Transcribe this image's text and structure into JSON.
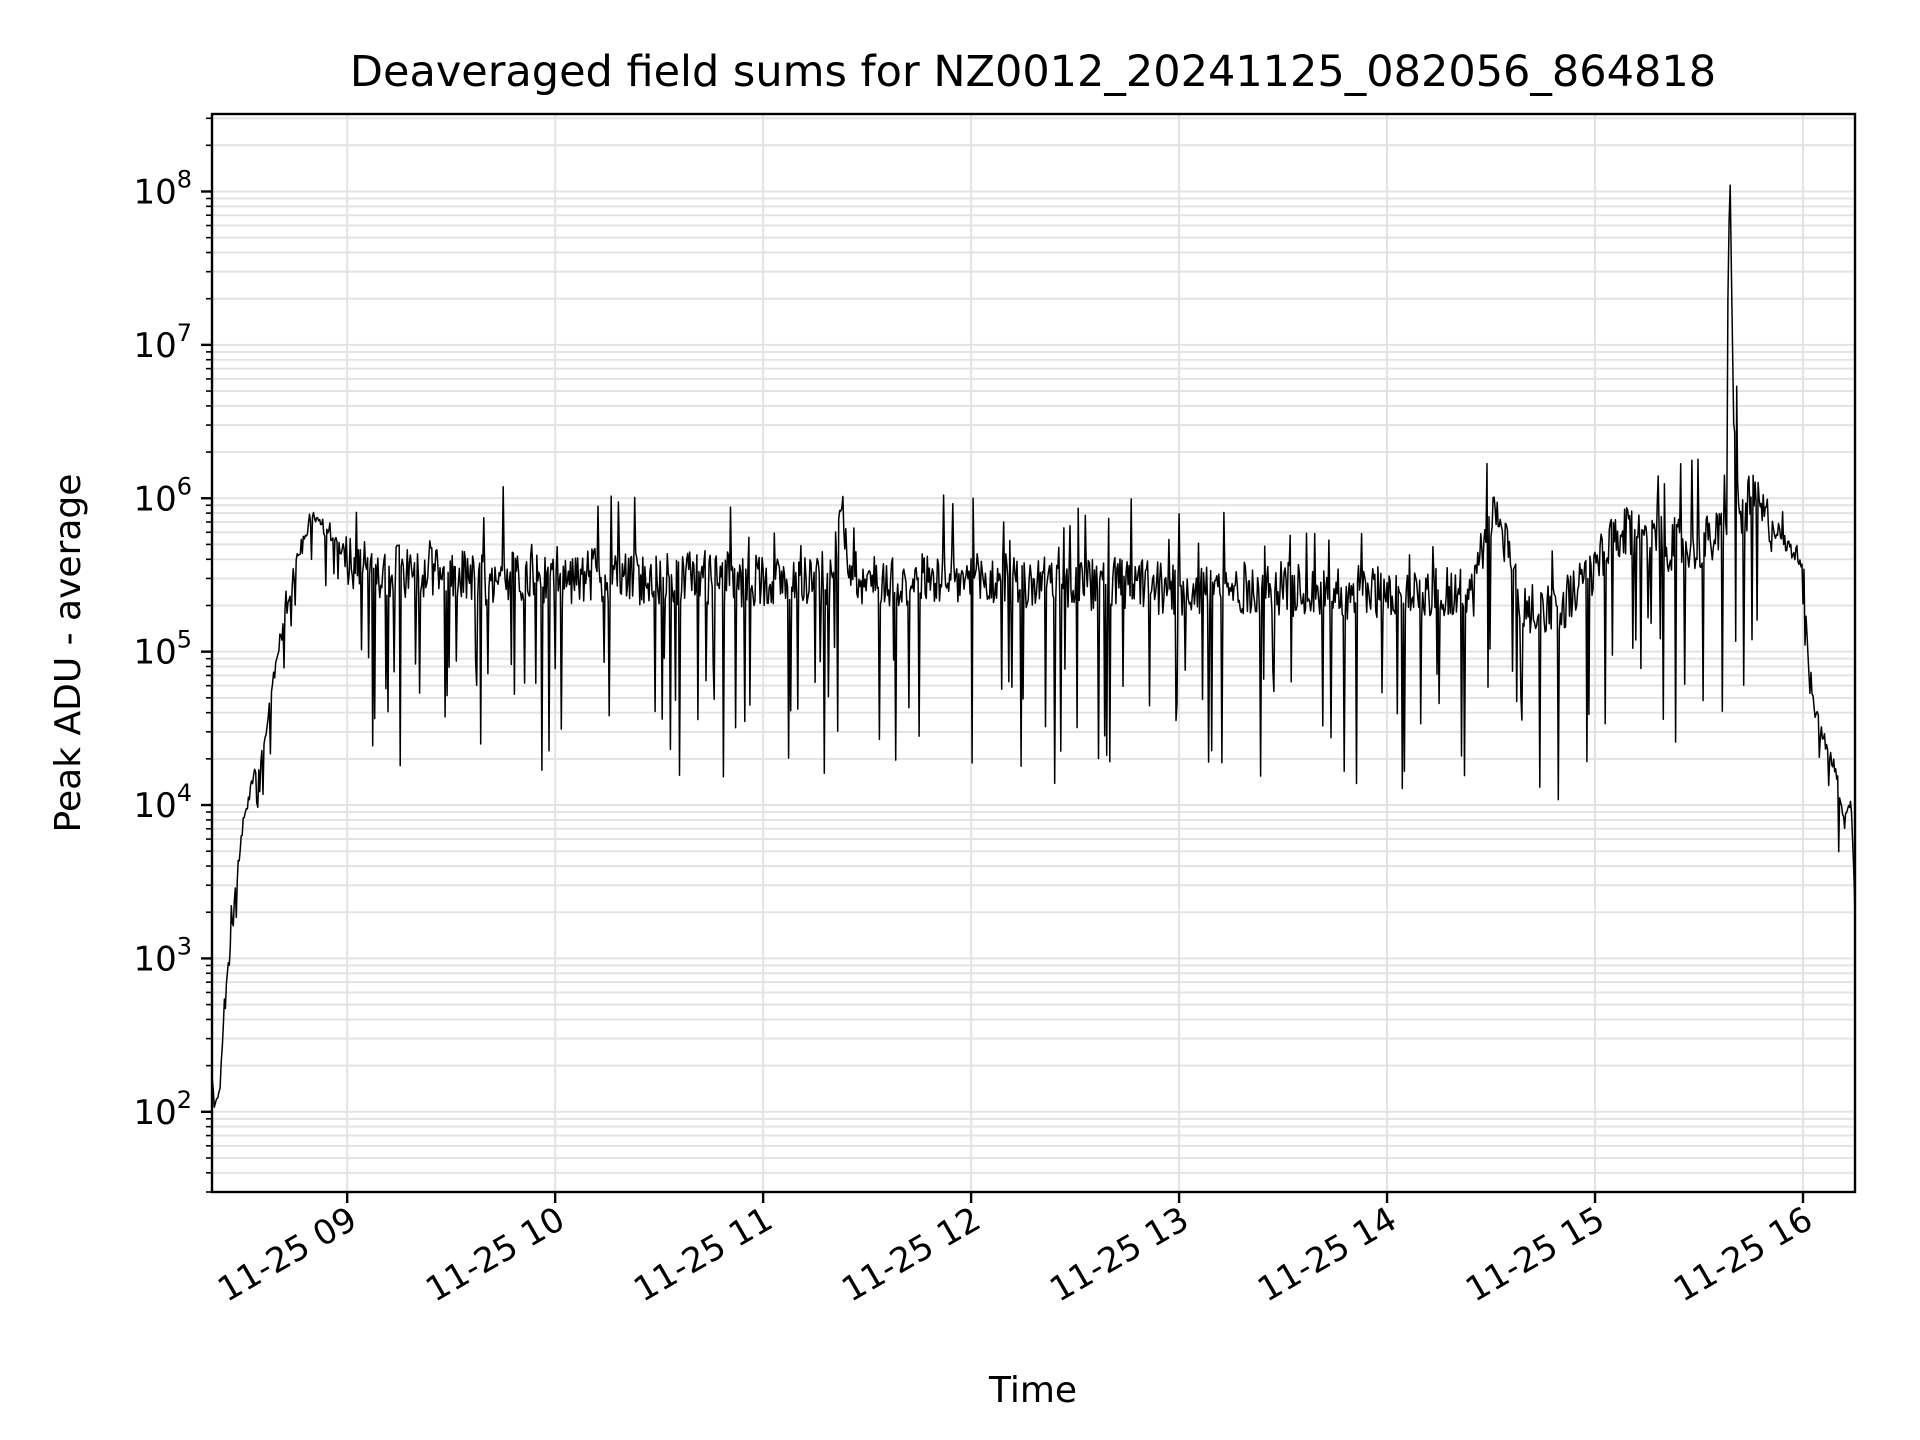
{
  "chart_data": {
    "type": "line",
    "title": "Deaveraged field sums for NZ0012_20241125_082056_864818",
    "xlabel": "Time",
    "ylabel": "Peak ADU - average",
    "yscale": "log",
    "ylim": [
      30,
      320000000
    ],
    "xlim": [
      "2024-11-25 08:21",
      "2024-11-25 16:15"
    ],
    "grid": true,
    "x_ticks": [
      "11-25 09",
      "11-25 10",
      "11-25 11",
      "11-25 12",
      "11-25 13",
      "11-25 14",
      "11-25 15",
      "11-25 16"
    ],
    "y_ticks": [
      {
        "base": "10",
        "exp": "2"
      },
      {
        "base": "10",
        "exp": "3"
      },
      {
        "base": "10",
        "exp": "4"
      },
      {
        "base": "10",
        "exp": "5"
      },
      {
        "base": "10",
        "exp": "6"
      },
      {
        "base": "10",
        "exp": "7"
      },
      {
        "base": "10",
        "exp": "8"
      }
    ],
    "series": [
      {
        "color": "#000000",
        "x": [
          "2024-11-25 08:21",
          "2024-11-25 08:22",
          "2024-11-25 08:23",
          "2024-11-25 08:24",
          "2024-11-25 08:26",
          "2024-11-25 08:28",
          "2024-11-25 08:30",
          "2024-11-25 08:33",
          "2024-11-25 08:36",
          "2024-11-25 08:40",
          "2024-11-25 08:45",
          "2024-11-25 08:50",
          "2024-11-25 08:55",
          "2024-11-25 09:00",
          "2024-11-25 09:05",
          "2024-11-25 09:10",
          "2024-11-25 09:15",
          "2024-11-25 09:20",
          "2024-11-25 09:25",
          "2024-11-25 09:30",
          "2024-11-25 09:35",
          "2024-11-25 09:40",
          "2024-11-25 09:45",
          "2024-11-25 09:50",
          "2024-11-25 09:55",
          "2024-11-25 10:00",
          "2024-11-25 10:05",
          "2024-11-25 10:10",
          "2024-11-25 10:15",
          "2024-11-25 10:20",
          "2024-11-25 10:25",
          "2024-11-25 10:30",
          "2024-11-25 10:35",
          "2024-11-25 10:40",
          "2024-11-25 10:45",
          "2024-11-25 10:50",
          "2024-11-25 10:55",
          "2024-11-25 11:00",
          "2024-11-25 11:05",
          "2024-11-25 11:10",
          "2024-11-25 11:15",
          "2024-11-25 11:20",
          "2024-11-25 11:23",
          "2024-11-25 11:25",
          "2024-11-25 11:30",
          "2024-11-25 11:35",
          "2024-11-25 11:40",
          "2024-11-25 11:45",
          "2024-11-25 11:50",
          "2024-11-25 11:55",
          "2024-11-25 12:00",
          "2024-11-25 12:05",
          "2024-11-25 12:10",
          "2024-11-25 12:15",
          "2024-11-25 12:20",
          "2024-11-25 12:25",
          "2024-11-25 12:30",
          "2024-11-25 12:35",
          "2024-11-25 12:40",
          "2024-11-25 12:45",
          "2024-11-25 12:50",
          "2024-11-25 12:55",
          "2024-11-25 13:00",
          "2024-11-25 13:05",
          "2024-11-25 13:10",
          "2024-11-25 13:15",
          "2024-11-25 13:20",
          "2024-11-25 13:25",
          "2024-11-25 13:30",
          "2024-11-25 13:35",
          "2024-11-25 13:40",
          "2024-11-25 13:45",
          "2024-11-25 13:50",
          "2024-11-25 13:55",
          "2024-11-25 14:00",
          "2024-11-25 14:05",
          "2024-11-25 14:10",
          "2024-11-25 14:15",
          "2024-11-25 14:20",
          "2024-11-25 14:25",
          "2024-11-25 14:30",
          "2024-11-25 14:35",
          "2024-11-25 14:38",
          "2024-11-25 14:41",
          "2024-11-25 14:45",
          "2024-11-25 14:50",
          "2024-11-25 14:55",
          "2024-11-25 15:00",
          "2024-11-25 15:05",
          "2024-11-25 15:10",
          "2024-11-25 15:15",
          "2024-11-25 15:20",
          "2024-11-25 15:25",
          "2024-11-25 15:30",
          "2024-11-25 15:35",
          "2024-11-25 15:37",
          "2024-11-25 15:38",
          "2024-11-25 15:39",
          "2024-11-25 15:40",
          "2024-11-25 15:42",
          "2024-11-25 15:45",
          "2024-11-25 15:50",
          "2024-11-25 15:55",
          "2024-11-25 16:00",
          "2024-11-25 16:02",
          "2024-11-25 16:05",
          "2024-11-25 16:08",
          "2024-11-25 16:10",
          "2024-11-25 16:12",
          "2024-11-25 16:14",
          "2024-11-25 16:15"
        ],
        "y": [
          150,
          100,
          120,
          300,
          1000,
          3000,
          8000,
          15000,
          25000,
          100000,
          350000,
          800000,
          600000,
          400000,
          350000,
          300000,
          350000,
          300000,
          320000,
          350000,
          300000,
          300000,
          300000,
          300000,
          300000,
          280000,
          300000,
          320000,
          300000,
          300000,
          300000,
          300000,
          300000,
          320000,
          300000,
          300000,
          280000,
          300000,
          280000,
          300000,
          300000,
          300000,
          900000,
          350000,
          280000,
          300000,
          280000,
          300000,
          300000,
          280000,
          300000,
          280000,
          300000,
          270000,
          280000,
          270000,
          280000,
          270000,
          280000,
          270000,
          280000,
          250000,
          260000,
          250000,
          260000,
          250000,
          260000,
          250000,
          260000,
          250000,
          240000,
          250000,
          240000,
          250000,
          240000,
          250000,
          240000,
          250000,
          240000,
          250000,
          800000,
          500000,
          200000,
          180000,
          200000,
          200000,
          250000,
          350000,
          500000,
          600000,
          550000,
          500000,
          500000,
          500000,
          550000,
          600000,
          5000000,
          150000000,
          3000000,
          700000,
          1000000,
          700000,
          500000,
          400000,
          60000,
          30000,
          20000,
          15000,
          8000,
          10000,
          2000
        ]
      }
    ]
  }
}
